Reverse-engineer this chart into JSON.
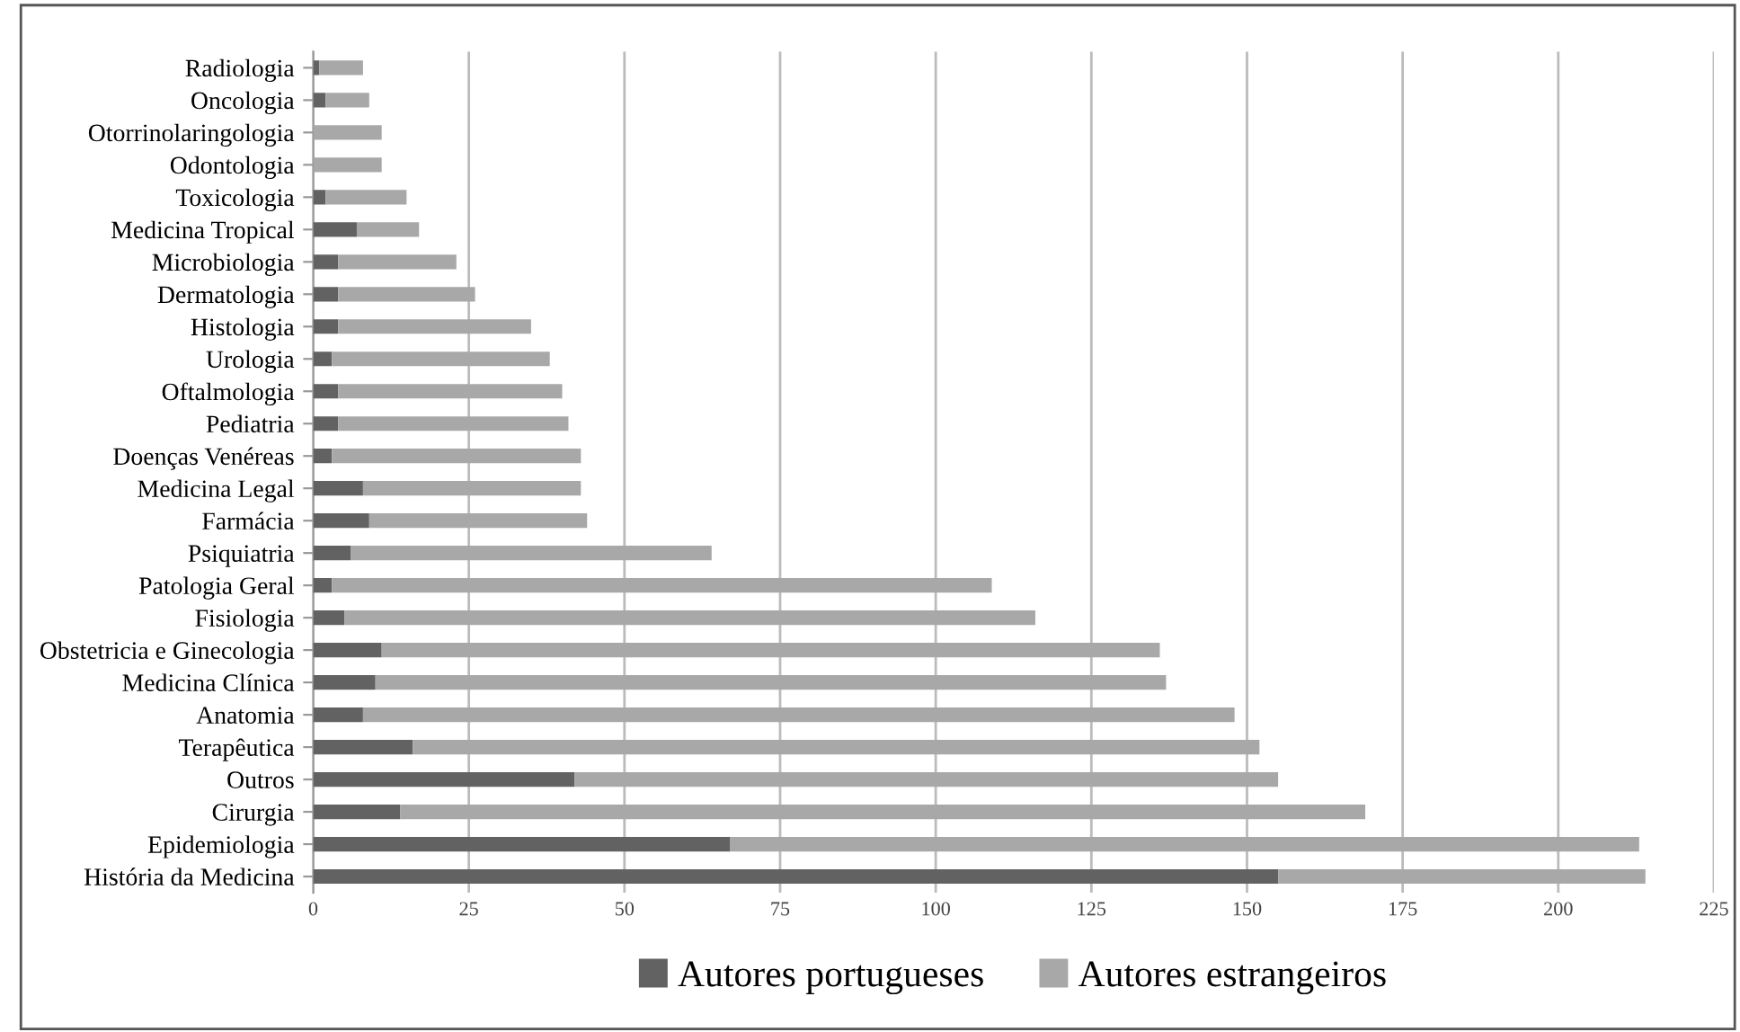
{
  "chart_data": {
    "type": "bar",
    "orientation": "horizontal",
    "stacked": true,
    "categories": [
      "Radiologia",
      "Oncologia",
      "Otorrinolaringologia",
      "Odontologia",
      "Toxicologia",
      "Medicina Tropical",
      "Microbiologia",
      "Dermatologia",
      "Histologia",
      "Urologia",
      "Oftalmologia",
      "Pediatria",
      "Doenças Venéreas",
      "Medicina Legal",
      "Farmácia",
      "Psiquiatria",
      "Patologia Geral",
      "Fisiologia",
      "Obstetricia e Ginecologia",
      "Medicina Clínica",
      "Anatomia",
      "Terapêutica",
      "Outros",
      "Cirurgia",
      "Epidemiologia",
      "História da Medicina"
    ],
    "series": [
      {
        "name": "Autores portugueses",
        "color": "#626262",
        "values": [
          1,
          2,
          0,
          0,
          2,
          7,
          4,
          4,
          4,
          3,
          4,
          4,
          3,
          8,
          9,
          6,
          3,
          5,
          11,
          10,
          8,
          16,
          42,
          14,
          67,
          155
        ]
      },
      {
        "name": "Autores estrangeiros",
        "color": "#a8a8a8",
        "values": [
          7,
          7,
          11,
          11,
          13,
          10,
          19,
          22,
          31,
          35,
          36,
          37,
          40,
          35,
          35,
          58,
          106,
          111,
          125,
          127,
          140,
          136,
          113,
          155,
          146,
          59
        ]
      }
    ],
    "xlim": [
      0,
      225
    ],
    "xticks": [
      0,
      25,
      50,
      75,
      100,
      125,
      150,
      175,
      200,
      225
    ],
    "grid": "x",
    "legend": "bottom"
  }
}
